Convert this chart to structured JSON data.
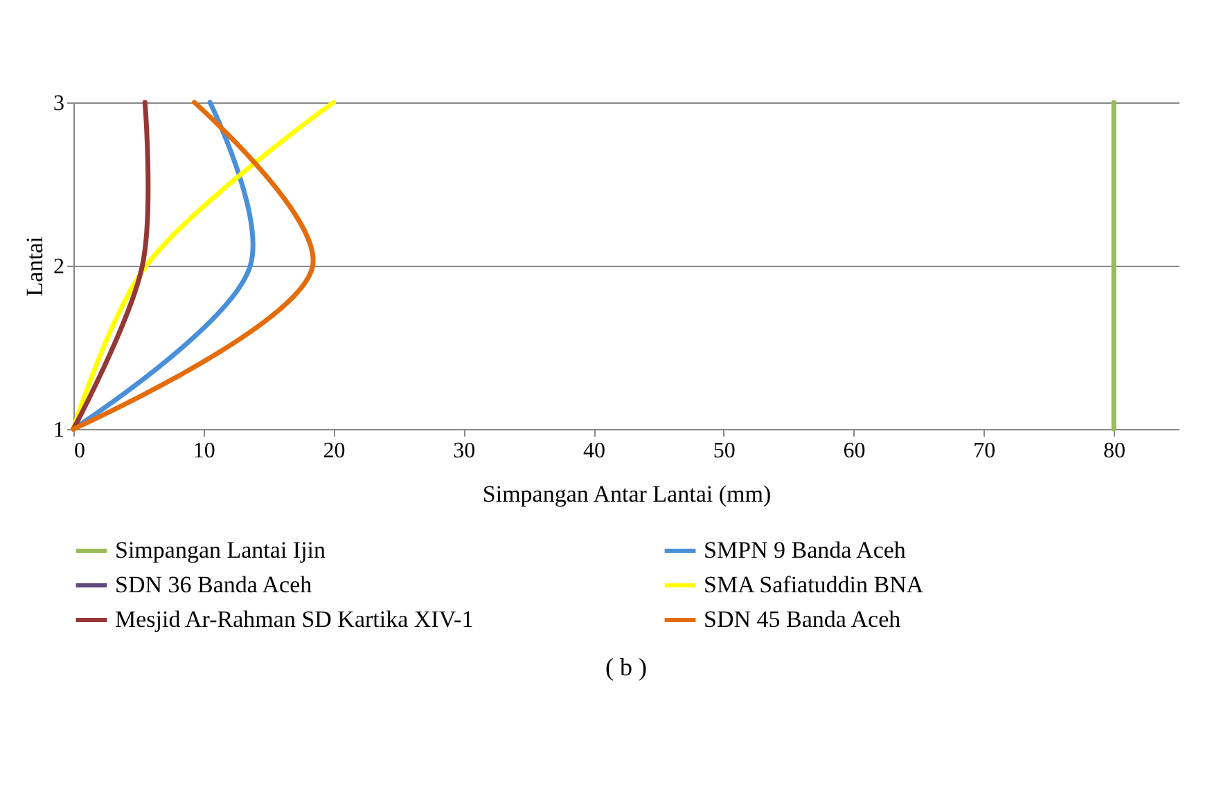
{
  "chart_data": {
    "type": "line",
    "xlabel": "Simpangan Antar Lantai (mm)",
    "ylabel": "Lantai",
    "xlim": [
      0,
      85
    ],
    "xticks": [
      0,
      10,
      20,
      30,
      40,
      50,
      60,
      70,
      80
    ],
    "ylim": [
      1,
      3
    ],
    "yticks": [
      1,
      2,
      3
    ],
    "grid": "y",
    "legend": "bottom",
    "annotations": [
      "( b )"
    ],
    "series": [
      {
        "name": "Simpangan Lantai Ijin",
        "color": "#9bbb59",
        "x": [
          80,
          80,
          80
        ],
        "values": [
          1,
          2,
          3
        ]
      },
      {
        "name": "SMPN 9 Banda Aceh",
        "color": "#4a90d9",
        "x": [
          0,
          13.6,
          10.5
        ],
        "values": [
          1,
          2,
          3
        ]
      },
      {
        "name": "SDN 36 Banda Aceh",
        "color": "#604a7b",
        "x": [
          null,
          null,
          null
        ],
        "values": [
          null,
          null,
          null
        ]
      },
      {
        "name": "SMA Safiatuddin BNA",
        "color": "#ffff00",
        "x": [
          0,
          5.6,
          20
        ],
        "values": [
          1,
          2,
          3
        ]
      },
      {
        "name": "Mesjid Ar-Rahman SD Kartika XIV-1",
        "color": "#953735",
        "x": [
          0,
          5.3,
          5.5
        ],
        "values": [
          1,
          2,
          3
        ]
      },
      {
        "name": "SDN 45 Banda Aceh",
        "color": "#e46c0a",
        "x": [
          0,
          18.4,
          9.3
        ],
        "values": [
          1,
          2,
          3
        ]
      }
    ]
  }
}
